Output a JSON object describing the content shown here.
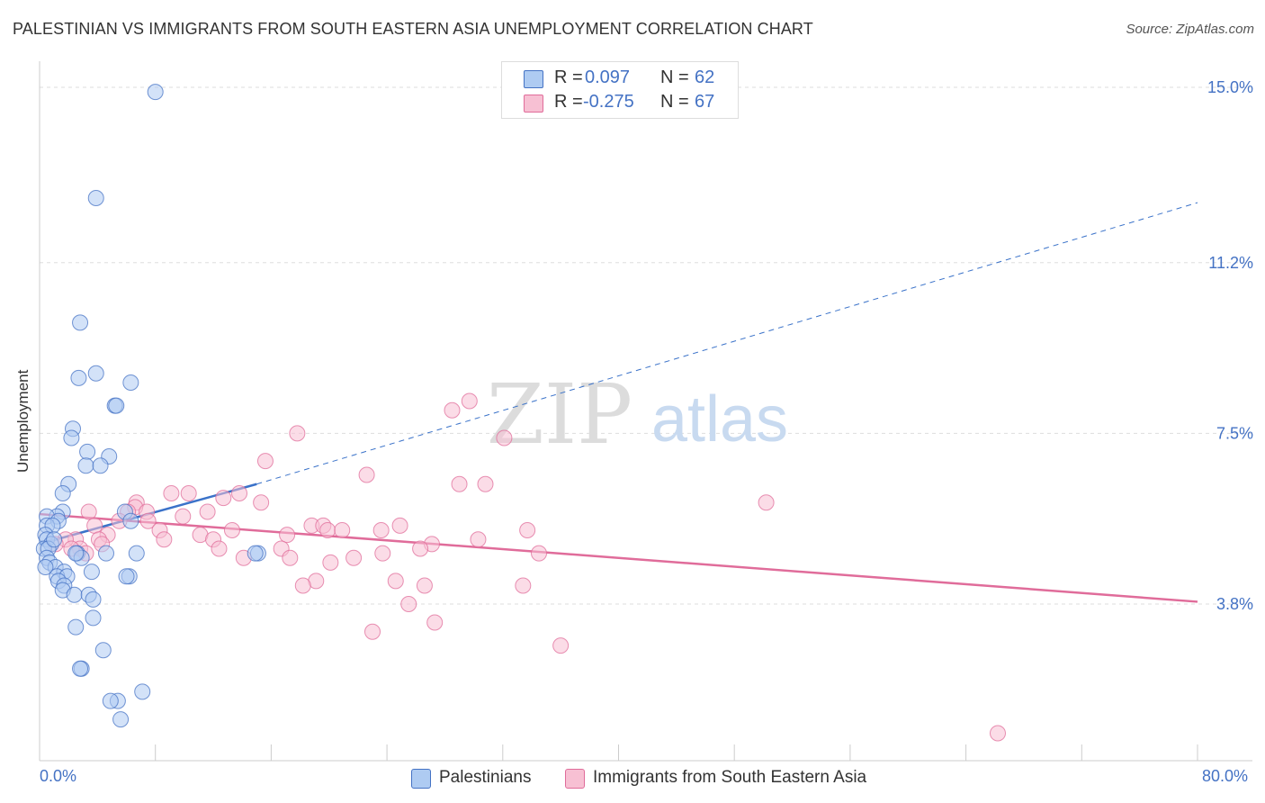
{
  "title": "PALESTINIAN VS IMMIGRANTS FROM SOUTH EASTERN ASIA UNEMPLOYMENT CORRELATION CHART",
  "source": "Source: ZipAtlas.com",
  "watermark": {
    "zip": "ZIP",
    "atlas": "atlas"
  },
  "colors": {
    "blue": "#4472c4",
    "blue_fill": "#aecbf2",
    "blue_line": "#3a72c9",
    "pink": "#e06c9a",
    "pink_fill": "#f7c0d3",
    "grid": "#dddddd",
    "axis_label": "#4472c4"
  },
  "legend_top": {
    "rows": [
      {
        "r_label": "R =",
        "r_value": "0.097",
        "n_label": "N =",
        "n_value": "62",
        "color": "#4472c4"
      },
      {
        "r_label": "R =",
        "r_value": "-0.275",
        "n_label": "N =",
        "n_value": "67",
        "color": "#4472c4"
      }
    ]
  },
  "legend_bottom": [
    {
      "label": "Palestinians"
    },
    {
      "label": "Immigrants from South Eastern Asia"
    }
  ],
  "chart_data": {
    "type": "scatter",
    "title": "PALESTINIAN VS IMMIGRANTS FROM SOUTH EASTERN ASIA UNEMPLOYMENT CORRELATION CHART",
    "xlabel": "",
    "ylabel": "Unemployment",
    "xlim": [
      0,
      80
    ],
    "ylim": [
      0,
      15.3
    ],
    "x_tick_labels": [
      {
        "value": 0,
        "label": "0.0%"
      },
      {
        "value": 80,
        "label": "80.0%"
      }
    ],
    "y_tick_labels": [
      {
        "value": 3.8,
        "label": "3.8%"
      },
      {
        "value": 7.5,
        "label": "7.5%"
      },
      {
        "value": 11.2,
        "label": "11.2%"
      },
      {
        "value": 15.0,
        "label": "15.0%"
      }
    ],
    "series": [
      {
        "name": "Palestinians",
        "R": 0.097,
        "N": 62,
        "trend": {
          "solid": [
            [
              0,
              5.1
            ],
            [
              15,
              6.4
            ]
          ],
          "dashed": [
            [
              15,
              6.4
            ],
            [
              80,
              12.5
            ]
          ]
        },
        "points": [
          [
            8,
            14.9
          ],
          [
            3.9,
            12.6
          ],
          [
            2.8,
            9.9
          ],
          [
            2.7,
            8.7
          ],
          [
            3.9,
            8.8
          ],
          [
            6.3,
            8.6
          ],
          [
            5.2,
            8.1
          ],
          [
            5.3,
            8.1
          ],
          [
            2.3,
            7.6
          ],
          [
            2.2,
            7.4
          ],
          [
            3.3,
            7.1
          ],
          [
            4.8,
            7.0
          ],
          [
            3.2,
            6.8
          ],
          [
            4.2,
            6.8
          ],
          [
            2.0,
            6.4
          ],
          [
            1.6,
            6.2
          ],
          [
            5.9,
            5.8
          ],
          [
            1.6,
            5.8
          ],
          [
            1.2,
            5.7
          ],
          [
            0.5,
            5.7
          ],
          [
            1.3,
            5.6
          ],
          [
            6.3,
            5.6
          ],
          [
            0.5,
            5.5
          ],
          [
            0.9,
            5.5
          ],
          [
            0.4,
            5.3
          ],
          [
            0.5,
            5.2
          ],
          [
            0.8,
            5.1
          ],
          [
            0.3,
            5.0
          ],
          [
            0.6,
            5.0
          ],
          [
            2.6,
            4.9
          ],
          [
            4.6,
            4.9
          ],
          [
            6.7,
            4.9
          ],
          [
            2.9,
            4.8
          ],
          [
            2.5,
            4.9
          ],
          [
            0.5,
            4.8
          ],
          [
            0.7,
            4.7
          ],
          [
            1.1,
            4.6
          ],
          [
            0.4,
            4.6
          ],
          [
            1.7,
            4.5
          ],
          [
            3.6,
            4.5
          ],
          [
            1.2,
            4.4
          ],
          [
            1.9,
            4.4
          ],
          [
            6.2,
            4.4
          ],
          [
            6.0,
            4.4
          ],
          [
            1.3,
            4.3
          ],
          [
            1.7,
            4.2
          ],
          [
            1.6,
            4.1
          ],
          [
            2.4,
            4.0
          ],
          [
            3.4,
            4.0
          ],
          [
            3.7,
            3.9
          ],
          [
            3.7,
            3.5
          ],
          [
            2.5,
            3.3
          ],
          [
            4.4,
            2.8
          ],
          [
            2.9,
            2.4
          ],
          [
            2.8,
            2.4
          ],
          [
            7.1,
            1.9
          ],
          [
            5.4,
            1.7
          ],
          [
            4.9,
            1.7
          ],
          [
            5.6,
            1.3
          ],
          [
            15.1,
            4.9
          ],
          [
            14.9,
            4.9
          ],
          [
            1.0,
            5.2
          ]
        ]
      },
      {
        "name": "Immigrants from South Eastern Asia",
        "R": -0.275,
        "N": 67,
        "trend": {
          "solid": [
            [
              0,
              5.75
            ],
            [
              80,
              3.85
            ]
          ]
        },
        "points": [
          [
            29.7,
            8.2
          ],
          [
            28.5,
            8.0
          ],
          [
            17.8,
            7.5
          ],
          [
            32.1,
            7.4
          ],
          [
            15.6,
            6.9
          ],
          [
            22.6,
            6.6
          ],
          [
            29.0,
            6.4
          ],
          [
            30.8,
            6.4
          ],
          [
            50.2,
            6.0
          ],
          [
            9.1,
            6.2
          ],
          [
            10.3,
            6.2
          ],
          [
            13.8,
            6.2
          ],
          [
            12.7,
            6.1
          ],
          [
            15.3,
            6.0
          ],
          [
            6.7,
            6.0
          ],
          [
            6.6,
            5.9
          ],
          [
            3.4,
            5.8
          ],
          [
            7.4,
            5.8
          ],
          [
            11.6,
            5.8
          ],
          [
            6.1,
            5.8
          ],
          [
            9.9,
            5.7
          ],
          [
            7.5,
            5.6
          ],
          [
            3.8,
            5.5
          ],
          [
            18.8,
            5.5
          ],
          [
            19.6,
            5.5
          ],
          [
            24.9,
            5.5
          ],
          [
            19.9,
            5.4
          ],
          [
            20.9,
            5.4
          ],
          [
            13.3,
            5.4
          ],
          [
            17.1,
            5.3
          ],
          [
            8.3,
            5.4
          ],
          [
            8.6,
            5.2
          ],
          [
            23.6,
            5.4
          ],
          [
            33.7,
            5.4
          ],
          [
            4.7,
            5.3
          ],
          [
            11.1,
            5.3
          ],
          [
            4.1,
            5.2
          ],
          [
            12.0,
            5.2
          ],
          [
            30.3,
            5.2
          ],
          [
            27.1,
            5.1
          ],
          [
            2.5,
            5.2
          ],
          [
            1.8,
            5.2
          ],
          [
            12.4,
            5.0
          ],
          [
            16.7,
            5.0
          ],
          [
            26.3,
            5.0
          ],
          [
            4.3,
            5.1
          ],
          [
            2.8,
            5.0
          ],
          [
            23.7,
            4.9
          ],
          [
            34.5,
            4.9
          ],
          [
            3.2,
            4.9
          ],
          [
            14.1,
            4.8
          ],
          [
            17.3,
            4.8
          ],
          [
            21.7,
            4.8
          ],
          [
            20.1,
            4.7
          ],
          [
            19.1,
            4.3
          ],
          [
            24.6,
            4.3
          ],
          [
            18.2,
            4.2
          ],
          [
            26.6,
            4.2
          ],
          [
            33.4,
            4.2
          ],
          [
            25.5,
            3.8
          ],
          [
            27.3,
            3.4
          ],
          [
            23.0,
            3.2
          ],
          [
            36.0,
            2.9
          ],
          [
            66.2,
            1.0
          ],
          [
            5.5,
            5.6
          ],
          [
            1.1,
            5.1
          ],
          [
            2.2,
            5.0
          ]
        ]
      }
    ]
  }
}
